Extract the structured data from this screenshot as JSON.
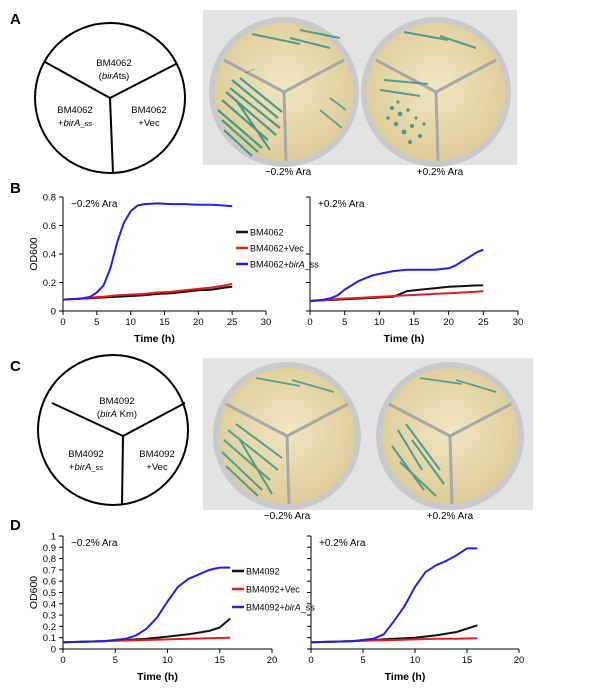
{
  "panels": {
    "A": {
      "letter": "A",
      "schematic": {
        "top_line1": "BM4062",
        "top_line2_pre": "(",
        "top_line2_italic": "birA",
        "top_line2_post": "ts)",
        "left_line1": "BM4062",
        "left_line2_pre": "+",
        "left_line2_italic": "birA",
        "left_line2_sub": "_ss",
        "right_line1": "BM4062",
        "right_line2": "+Vec"
      },
      "photo_labels": [
        "−0.2% Ara",
        "+0.2% Ara"
      ]
    },
    "C": {
      "letter": "C",
      "schematic": {
        "top_line1": "BM4092",
        "top_line2_pre": "(",
        "top_line2_italic": "birA",
        "top_line2_post": " Km)",
        "left_line1": "BM4092",
        "left_line2_pre": "+",
        "left_line2_italic": "birA",
        "left_line2_sub": "_ss",
        "right_line1": "BM4092",
        "right_line2": "+Vec"
      },
      "photo_labels": [
        "−0.2% Ara",
        "+0.2% Ara"
      ]
    }
  },
  "chart_data": [
    {
      "id": "B-minus",
      "panel": "B",
      "type": "line",
      "annotation": "−0.2% Ara",
      "xlabel": "Time (h)",
      "ylabel": "OD600",
      "xlim": [
        0,
        30
      ],
      "ylim": [
        0,
        0.8
      ],
      "xticks": [
        0,
        5,
        10,
        15,
        20,
        25,
        30
      ],
      "yticks": [
        0,
        0.2,
        0.4,
        0.6,
        0.8
      ],
      "ytick_labels": [
        "0",
        "0.2",
        "0.4",
        "0.6",
        "0.8"
      ],
      "legend_placement": "right",
      "series": [
        {
          "color": "#111111",
          "points": [
            [
              0,
              0.08
            ],
            [
              2,
              0.085
            ],
            [
              4,
              0.09
            ],
            [
              6,
              0.095
            ],
            [
              8,
              0.1
            ],
            [
              10,
              0.105
            ],
            [
              12,
              0.11
            ],
            [
              14,
              0.12
            ],
            [
              16,
              0.125
            ],
            [
              18,
              0.135
            ],
            [
              20,
              0.145
            ],
            [
              22,
              0.15
            ],
            [
              24,
              0.165
            ],
            [
              25,
              0.17
            ]
          ]
        },
        {
          "color": "#e02020",
          "points": [
            [
              0,
              0.08
            ],
            [
              2,
              0.085
            ],
            [
              4,
              0.095
            ],
            [
              6,
              0.1
            ],
            [
              8,
              0.11
            ],
            [
              10,
              0.115
            ],
            [
              12,
              0.12
            ],
            [
              14,
              0.13
            ],
            [
              16,
              0.135
            ],
            [
              18,
              0.145
            ],
            [
              20,
              0.155
            ],
            [
              22,
              0.165
            ],
            [
              24,
              0.18
            ],
            [
              25,
              0.19
            ]
          ]
        },
        {
          "color": "#2222dd",
          "points": [
            [
              0,
              0.08
            ],
            [
              2,
              0.085
            ],
            [
              3,
              0.09
            ],
            [
              4,
              0.1
            ],
            [
              5,
              0.13
            ],
            [
              6,
              0.18
            ],
            [
              7,
              0.3
            ],
            [
              8,
              0.48
            ],
            [
              9,
              0.62
            ],
            [
              10,
              0.7
            ],
            [
              11,
              0.74
            ],
            [
              12,
              0.75
            ],
            [
              14,
              0.755
            ],
            [
              16,
              0.75
            ],
            [
              18,
              0.75
            ],
            [
              20,
              0.745
            ],
            [
              22,
              0.745
            ],
            [
              24,
              0.74
            ],
            [
              25,
              0.735
            ]
          ]
        }
      ]
    },
    {
      "id": "B-plus",
      "panel": "B",
      "type": "line",
      "annotation": "+0.2% Ara",
      "xlabel": "Time (h)",
      "ylabel": "",
      "xlim": [
        0,
        30
      ],
      "ylim": [
        0,
        0.8
      ],
      "xticks": [
        0,
        5,
        10,
        15,
        20,
        25,
        30
      ],
      "yticks": [
        0,
        0.2,
        0.4,
        0.6,
        0.8
      ],
      "series": [
        {
          "color": "#111111",
          "points": [
            [
              0,
              0.07
            ],
            [
              2,
              0.075
            ],
            [
              4,
              0.08
            ],
            [
              6,
              0.085
            ],
            [
              8,
              0.09
            ],
            [
              10,
              0.095
            ],
            [
              12,
              0.1
            ],
            [
              14,
              0.14
            ],
            [
              16,
              0.15
            ],
            [
              18,
              0.16
            ],
            [
              20,
              0.17
            ],
            [
              22,
              0.175
            ],
            [
              24,
              0.18
            ],
            [
              25,
              0.18
            ]
          ]
        },
        {
          "color": "#e02020",
          "points": [
            [
              0,
              0.07
            ],
            [
              2,
              0.075
            ],
            [
              4,
              0.085
            ],
            [
              6,
              0.09
            ],
            [
              8,
              0.095
            ],
            [
              10,
              0.1
            ],
            [
              12,
              0.105
            ],
            [
              14,
              0.11
            ],
            [
              16,
              0.115
            ],
            [
              18,
              0.12
            ],
            [
              20,
              0.125
            ],
            [
              22,
              0.13
            ],
            [
              24,
              0.135
            ],
            [
              25,
              0.14
            ]
          ]
        },
        {
          "color": "#2222dd",
          "points": [
            [
              0,
              0.07
            ],
            [
              2,
              0.08
            ],
            [
              3,
              0.09
            ],
            [
              4,
              0.11
            ],
            [
              5,
              0.15
            ],
            [
              6,
              0.18
            ],
            [
              7,
              0.21
            ],
            [
              8,
              0.23
            ],
            [
              9,
              0.25
            ],
            [
              10,
              0.26
            ],
            [
              11,
              0.27
            ],
            [
              12,
              0.28
            ],
            [
              14,
              0.29
            ],
            [
              16,
              0.29
            ],
            [
              18,
              0.29
            ],
            [
              20,
              0.3
            ],
            [
              21,
              0.32
            ],
            [
              22,
              0.35
            ],
            [
              23,
              0.38
            ],
            [
              24,
              0.41
            ],
            [
              25,
              0.43
            ]
          ]
        }
      ]
    },
    {
      "id": "D-minus",
      "panel": "D",
      "type": "line",
      "annotation": "−0.2% Ara",
      "xlabel": "Time (h)",
      "ylabel": "OD600",
      "xlim": [
        0,
        20
      ],
      "ylim": [
        0,
        1
      ],
      "xticks": [
        0,
        5,
        10,
        15,
        20
      ],
      "yticks": [
        0,
        0.1,
        0.2,
        0.3,
        0.4,
        0.5,
        0.6,
        0.7,
        0.8,
        0.9,
        1
      ],
      "ytick_labels": [
        "0",
        "0.1",
        "0.2",
        "0.3",
        "0.4",
        "0.5",
        "0.6",
        "0.7",
        "0.8",
        "0.9",
        "1"
      ],
      "legend_placement": "right",
      "series": [
        {
          "color": "#111111",
          "points": [
            [
              0,
              0.06
            ],
            [
              2,
              0.065
            ],
            [
              4,
              0.07
            ],
            [
              6,
              0.08
            ],
            [
              8,
              0.09
            ],
            [
              10,
              0.11
            ],
            [
              12,
              0.13
            ],
            [
              13,
              0.145
            ],
            [
              14,
              0.16
            ],
            [
              15,
              0.19
            ],
            [
              16,
              0.27
            ]
          ]
        },
        {
          "color": "#e02020",
          "points": [
            [
              0,
              0.06
            ],
            [
              2,
              0.065
            ],
            [
              4,
              0.07
            ],
            [
              6,
              0.075
            ],
            [
              8,
              0.08
            ],
            [
              10,
              0.085
            ],
            [
              12,
              0.09
            ],
            [
              14,
              0.095
            ],
            [
              16,
              0.1
            ]
          ]
        },
        {
          "color": "#2222dd",
          "points": [
            [
              0,
              0.06
            ],
            [
              2,
              0.065
            ],
            [
              4,
              0.07
            ],
            [
              6,
              0.09
            ],
            [
              7,
              0.12
            ],
            [
              8,
              0.18
            ],
            [
              9,
              0.28
            ],
            [
              10,
              0.42
            ],
            [
              11,
              0.55
            ],
            [
              12,
              0.62
            ],
            [
              13,
              0.66
            ],
            [
              14,
              0.7
            ],
            [
              15,
              0.72
            ],
            [
              16,
              0.72
            ]
          ]
        }
      ]
    },
    {
      "id": "D-plus",
      "panel": "D",
      "type": "line",
      "annotation": "+0.2% Ara",
      "xlabel": "Time (h)",
      "ylabel": "",
      "xlim": [
        0,
        20
      ],
      "ylim": [
        0,
        1
      ],
      "xticks": [
        0,
        5,
        10,
        15,
        20
      ],
      "yticks": [
        0,
        0.1,
        0.2,
        0.3,
        0.4,
        0.5,
        0.6,
        0.7,
        0.8,
        0.9,
        1
      ],
      "series": [
        {
          "color": "#111111",
          "points": [
            [
              0,
              0.06
            ],
            [
              2,
              0.065
            ],
            [
              4,
              0.07
            ],
            [
              6,
              0.08
            ],
            [
              8,
              0.09
            ],
            [
              10,
              0.1
            ],
            [
              12,
              0.12
            ],
            [
              14,
              0.15
            ],
            [
              16,
              0.21
            ]
          ]
        },
        {
          "color": "#e02020",
          "points": [
            [
              0,
              0.06
            ],
            [
              2,
              0.065
            ],
            [
              4,
              0.07
            ],
            [
              6,
              0.075
            ],
            [
              8,
              0.08
            ],
            [
              10,
              0.085
            ],
            [
              12,
              0.09
            ],
            [
              14,
              0.09
            ],
            [
              16,
              0.095
            ]
          ]
        },
        {
          "color": "#2222dd",
          "points": [
            [
              0,
              0.06
            ],
            [
              2,
              0.065
            ],
            [
              4,
              0.07
            ],
            [
              6,
              0.09
            ],
            [
              7,
              0.13
            ],
            [
              8,
              0.25
            ],
            [
              9,
              0.38
            ],
            [
              10,
              0.55
            ],
            [
              11,
              0.68
            ],
            [
              12,
              0.74
            ],
            [
              13,
              0.78
            ],
            [
              14,
              0.83
            ],
            [
              15,
              0.89
            ],
            [
              16,
              0.89
            ]
          ]
        }
      ]
    }
  ],
  "legends": {
    "B": [
      {
        "text": "BM4062",
        "color": "#111111"
      },
      {
        "text": "BM4062+Vec",
        "color": "#e02020"
      },
      {
        "text_pre": "BM4062+",
        "text_italic": "birA",
        "text_post": "_ss",
        "color": "#2222dd"
      }
    ],
    "D": [
      {
        "text": "BM4092",
        "color": "#111111"
      },
      {
        "text": "BM4092+Vec",
        "color": "#e02020"
      },
      {
        "text_pre": "BM4092+",
        "text_italic": "birA",
        "text_post": "_ss",
        "color": "#2222dd"
      }
    ]
  },
  "panel_letters": {
    "A": "A",
    "B": "B",
    "C": "C",
    "D": "D"
  },
  "colors": {
    "plate_agar": "#e9dcb0",
    "plate_rim": "#b8b8b8",
    "photo_bg": "#e2e2e2",
    "colony_teal": "#2f8f86",
    "colony_blue": "#2a3fb0"
  }
}
